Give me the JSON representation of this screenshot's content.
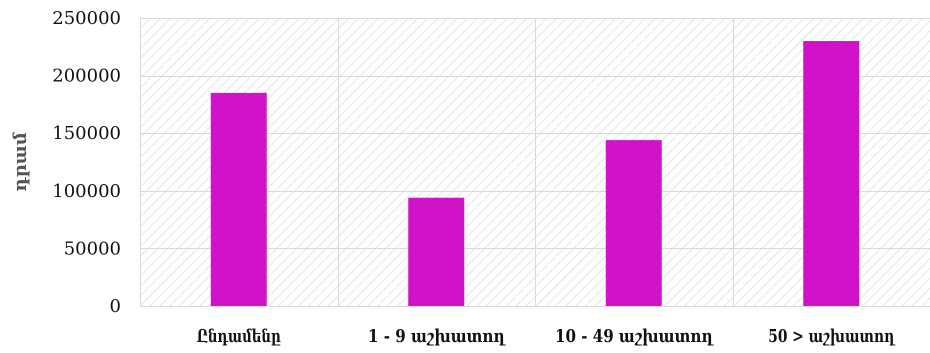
{
  "chart_data": {
    "type": "bar",
    "title": "",
    "xlabel": "",
    "ylabel": "դրամ",
    "categories": [
      "Ընդամենը",
      "1 - 9 աշխատող",
      "10 - 49 աշխատող",
      "50 > աշխատող"
    ],
    "values": [
      185000,
      94000,
      144000,
      230000
    ],
    "ylim": [
      0,
      250000
    ],
    "yticks": [
      0,
      50000,
      100000,
      150000,
      200000,
      250000
    ],
    "ytick_labels": [
      "0",
      "50000",
      "100000",
      "150000",
      "200000",
      "250000"
    ],
    "bar_color": "#d012c8",
    "grid": true,
    "legend": "none"
  }
}
